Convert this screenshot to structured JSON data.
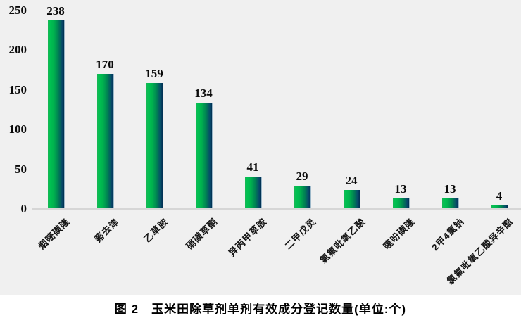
{
  "chart_data": {
    "type": "bar",
    "title": "图 2　玉米田除草剂单剂有效成分登记数量(单位:个)",
    "categories": [
      "烟嘧磺隆",
      "莠去津",
      "乙草胺",
      "硝磺草酮",
      "异丙甲草胺",
      "二甲戊灵",
      "氯氟吡氧乙酸",
      "噻吩磺隆",
      "2甲4氯钠",
      "氯氟吡氧乙酸异辛酯"
    ],
    "values": [
      238,
      170,
      159,
      134,
      41,
      29,
      24,
      13,
      13,
      4
    ],
    "value_labels": [
      "238",
      "170",
      "159",
      "134",
      "41",
      "29",
      "24",
      "13",
      "13",
      "4"
    ],
    "xlabel": "",
    "ylabel": "",
    "ylim": [
      0,
      250
    ],
    "yticks": [
      0,
      50,
      100,
      150,
      200,
      250
    ],
    "grid": false,
    "legend": "none",
    "colors": {
      "bar_gradient_start": "#00c151",
      "bar_gradient_end": "#003050",
      "plot_background": "#f0f0f0",
      "axis_line": "#d6d6d6",
      "text": "#0a0a0a"
    }
  }
}
